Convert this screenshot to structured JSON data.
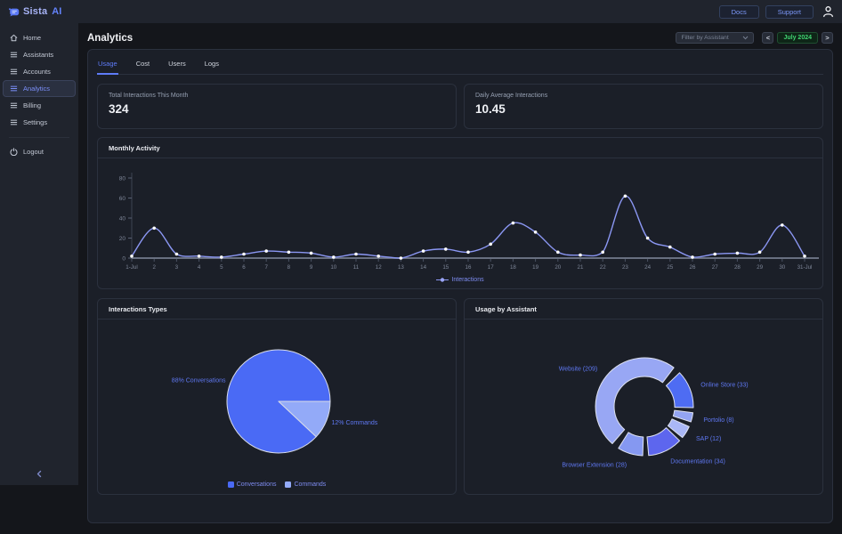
{
  "topbar": {
    "logo": {
      "primary": "Sista",
      "secondary": "AI"
    },
    "docs_label": "Docs",
    "support_label": "Support"
  },
  "sidebar": {
    "items": [
      {
        "label": "Home",
        "icon": "home-icon",
        "active": false
      },
      {
        "label": "Assistants",
        "icon": "list-icon",
        "active": false
      },
      {
        "label": "Accounts",
        "icon": "list-icon",
        "active": false
      },
      {
        "label": "Analytics",
        "icon": "list-icon",
        "active": true
      },
      {
        "label": "Billing",
        "icon": "list-icon",
        "active": false
      },
      {
        "label": "Settings",
        "icon": "list-icon",
        "active": false
      }
    ],
    "logout_label": "Logout"
  },
  "header": {
    "title": "Analytics",
    "filter_placeholder": "Filter by Assistant",
    "date_nav": {
      "prev": "<",
      "label": "July 2024",
      "next": ">"
    }
  },
  "tabs": {
    "items": [
      "Usage",
      "Cost",
      "Users",
      "Logs"
    ],
    "active": "Usage"
  },
  "stats": [
    {
      "label": "Total Interactions This Month",
      "value": "324"
    },
    {
      "label": "Daily Average Interactions",
      "value": "10.45"
    }
  ],
  "chart_data": [
    {
      "type": "line",
      "title": "Monthly Activity",
      "x": [
        "1-Jul",
        "2",
        "3",
        "4",
        "5",
        "6",
        "7",
        "8",
        "9",
        "10",
        "11",
        "12",
        "13",
        "14",
        "15",
        "16",
        "17",
        "18",
        "19",
        "20",
        "21",
        "22",
        "23",
        "24",
        "25",
        "26",
        "27",
        "28",
        "29",
        "30",
        "31-Jul"
      ],
      "series": [
        {
          "name": "Interactions",
          "values": [
            2,
            30,
            4,
            2,
            1,
            4,
            7,
            6,
            5,
            1,
            4,
            2,
            0,
            7,
            9,
            6,
            14,
            35,
            26,
            6,
            3,
            6,
            62,
            20,
            11,
            1,
            4,
            5,
            6,
            33,
            2
          ]
        }
      ],
      "xlabel": "",
      "ylabel": "",
      "ylim": [
        0,
        80
      ],
      "yticks": [
        0,
        20,
        40,
        60,
        80
      ],
      "legend_position": "bottom",
      "grid": false,
      "line_color": "#8b97f3",
      "point_color": "#ffffff"
    },
    {
      "type": "pie",
      "title": "Interactions Types",
      "slices": [
        {
          "name": "Conversations",
          "pct": 88,
          "label": "88% Conversations",
          "color": "#4a6af5"
        },
        {
          "name": "Commands",
          "pct": 12,
          "label": "12% Commands",
          "color": "#93aaf8"
        }
      ],
      "start_angle_cw_from_top": 133.2,
      "legend": [
        "Conversations",
        "Commands"
      ],
      "legend_position": "bottom"
    },
    {
      "type": "donut",
      "title": "Usage by Assistant",
      "segments": [
        {
          "name": "Website",
          "value": 209,
          "label": "Website (209)",
          "color": "#98a7f4",
          "arc": [
            221,
            397
          ]
        },
        {
          "name": "Online Store",
          "value": 33,
          "label": "Online Store (33)",
          "color": "#4e6cf3",
          "arc": [
            46,
            91
          ]
        },
        {
          "name": "Portolio",
          "value": 8,
          "label": "Portolio (8)",
          "color": "#93a4f2",
          "arc": [
            97,
            108
          ]
        },
        {
          "name": "SAP",
          "value": 12,
          "label": "SAP (12)",
          "color": "#aab7f6",
          "arc": [
            114,
            129
          ]
        },
        {
          "name": "Documentation",
          "value": 34,
          "label": "Documentation (34)",
          "color": "#5d66ee",
          "arc": [
            134,
            175
          ]
        },
        {
          "name": "Browser Extension",
          "value": 28,
          "label": "Browser Extension (28)",
          "color": "#8598f1",
          "arc": [
            182,
            212
          ]
        }
      ],
      "label_color": "#5f78f2"
    }
  ]
}
